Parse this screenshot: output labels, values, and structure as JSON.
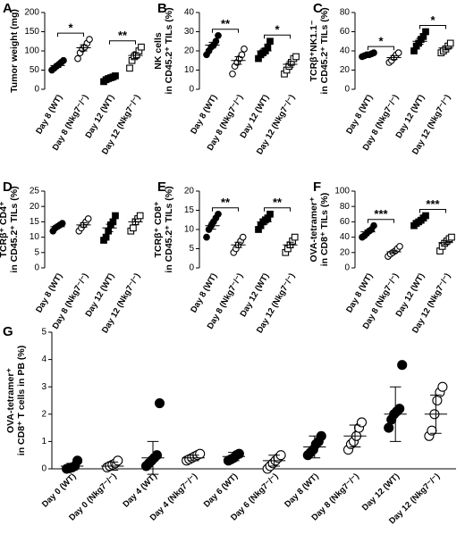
{
  "chart_data": [
    {
      "type": "dot",
      "panel": "A",
      "ylabel": [
        "Tumor weight (mg)"
      ],
      "categories": [
        "Day 8 (WT)",
        "Day 8 (Nkg7⁻/⁻)",
        "Day 12 (WT)",
        "Day 12 (Nkg7⁻/⁻)"
      ],
      "markers": [
        "filled-circle",
        "open-circle",
        "filled-square",
        "open-square"
      ],
      "values": [
        [
          50,
          55,
          60,
          65,
          70,
          75
        ],
        [
          80,
          95,
          105,
          110,
          120,
          130
        ],
        [
          20,
          25,
          28,
          30,
          32,
          35
        ],
        [
          55,
          75,
          85,
          90,
          100,
          110
        ]
      ],
      "mean": [
        62,
        108,
        28,
        88
      ],
      "error": [
        5,
        8,
        3,
        8
      ],
      "ylim": [
        0,
        200
      ],
      "yticks": [
        0,
        50,
        100,
        150,
        200
      ],
      "significance": [
        {
          "groups": [
            0,
            1
          ],
          "label": "*"
        },
        {
          "groups": [
            2,
            3
          ],
          "label": "**"
        }
      ]
    },
    {
      "type": "dot",
      "panel": "B",
      "ylabel": [
        "NK cells",
        "in CD45.2⁺ TILs (%)"
      ],
      "categories": [
        "Day 8 (WT)",
        "Day 8 (Nkg7⁻/⁻)",
        "Day 12 (WT)",
        "Day 12 (Nkg7⁻/⁻)"
      ],
      "markers": [
        "filled-circle",
        "open-circle",
        "filled-square",
        "open-square"
      ],
      "values": [
        [
          18,
          20,
          22,
          23,
          25,
          28
        ],
        [
          8,
          12,
          14,
          16,
          18,
          21
        ],
        [
          16,
          18,
          19,
          20,
          22,
          25
        ],
        [
          8,
          10,
          12,
          14,
          16,
          17
        ]
      ],
      "mean": [
        23,
        15,
        20,
        13
      ],
      "error": [
        1.5,
        2,
        1.3,
        1.5
      ],
      "ylim": [
        0,
        40
      ],
      "yticks": [
        0,
        10,
        20,
        30,
        40
      ],
      "significance": [
        {
          "groups": [
            0,
            1
          ],
          "label": "**"
        },
        {
          "groups": [
            2,
            3
          ],
          "label": "*"
        }
      ]
    },
    {
      "type": "dot",
      "panel": "C",
      "ylabel": [
        "TCRβ⁺NK1.1⁻",
        "in CD45.2⁺ TILs (%)"
      ],
      "categories": [
        "Day 8 (WT)",
        "Day 8 (Nkg7⁻/⁻)",
        "Day 12 (WT)",
        "Day 12 (Nkg7⁻/⁻)"
      ],
      "markers": [
        "filled-circle",
        "open-circle",
        "filled-square",
        "open-square"
      ],
      "values": [
        [
          34,
          35,
          36,
          36,
          37,
          38
        ],
        [
          28,
          30,
          33,
          36,
          38
        ],
        [
          40,
          45,
          48,
          52,
          55,
          60
        ],
        [
          38,
          40,
          42,
          45,
          48
        ]
      ],
      "mean": [
        36,
        33,
        50,
        43
      ],
      "error": [
        0.6,
        2,
        3,
        2
      ],
      "ylim": [
        0,
        80
      ],
      "yticks": [
        0,
        20,
        40,
        60,
        80
      ],
      "significance": [
        {
          "groups": [
            0,
            1
          ],
          "label": "*"
        },
        {
          "groups": [
            2,
            3
          ],
          "label": "*"
        }
      ]
    },
    {
      "type": "dot",
      "panel": "D",
      "ylabel": [
        "TCRβ⁺ CD4⁺",
        "in CD45.2⁺ TILs (%)"
      ],
      "categories": [
        "Day 8 (WT)",
        "Day 8 (Nkg7⁻/⁻)",
        "Day 12 (WT)",
        "Day 12 (Nkg7⁻/⁻)"
      ],
      "markers": [
        "filled-circle",
        "open-circle",
        "filled-square",
        "open-square"
      ],
      "values": [
        [
          12,
          13,
          13.5,
          14,
          14.5
        ],
        [
          12,
          13,
          14,
          15,
          16
        ],
        [
          9,
          10,
          12,
          14,
          15,
          17
        ],
        [
          12,
          13,
          15,
          16,
          17
        ]
      ],
      "mean": [
        13.4,
        14,
        13,
        15
      ],
      "error": [
        0.4,
        0.7,
        1.2,
        0.9
      ],
      "ylim": [
        0,
        25
      ],
      "yticks": [
        0,
        5,
        10,
        15,
        20,
        25
      ],
      "significance": []
    },
    {
      "type": "dot",
      "panel": "E",
      "ylabel": [
        "TCRβ⁺ CD8⁺",
        "in CD45.2⁺ TILs (%)"
      ],
      "categories": [
        "Day 8 (WT)",
        "Day 8 (Nkg7⁻/⁻)",
        "Day 12 (WT)",
        "Day 12 (Nkg7⁻/⁻)"
      ],
      "markers": [
        "filled-circle",
        "open-circle",
        "filled-square",
        "open-square"
      ],
      "values": [
        [
          8,
          10,
          11,
          12,
          13,
          14
        ],
        [
          4,
          5,
          6,
          7,
          8
        ],
        [
          10,
          11,
          12,
          12.5,
          13,
          14
        ],
        [
          4,
          5,
          6,
          7,
          8
        ]
      ],
      "mean": [
        11,
        6,
        12,
        6
      ],
      "error": [
        0.9,
        0.7,
        0.6,
        0.7
      ],
      "ylim": [
        0,
        20
      ],
      "yticks": [
        0,
        5,
        10,
        15,
        20
      ],
      "significance": [
        {
          "groups": [
            0,
            1
          ],
          "label": "**"
        },
        {
          "groups": [
            2,
            3
          ],
          "label": "**"
        }
      ]
    },
    {
      "type": "dot",
      "panel": "F",
      "ylabel": [
        "OVA-tetramer⁺",
        "in CD8⁺ TILs (%)"
      ],
      "categories": [
        "Day 8 (WT)",
        "Day 8 (Nkg7⁻/⁻)",
        "Day 12 (WT)",
        "Day 12 (Nkg7⁻/⁻)"
      ],
      "markers": [
        "filled-circle",
        "open-circle",
        "filled-square",
        "open-square"
      ],
      "values": [
        [
          40,
          42,
          45,
          48,
          50,
          55
        ],
        [
          15,
          18,
          20,
          22,
          25,
          28
        ],
        [
          55,
          58,
          60,
          62,
          65,
          68
        ],
        [
          22,
          28,
          32,
          35,
          38,
          40
        ]
      ],
      "mean": [
        47,
        21,
        61,
        33
      ],
      "error": [
        2.3,
        2,
        2,
        2.8
      ],
      "ylim": [
        0,
        100
      ],
      "yticks": [
        0,
        20,
        40,
        60,
        80,
        100
      ],
      "significance": [
        {
          "groups": [
            0,
            1
          ],
          "label": "***"
        },
        {
          "groups": [
            2,
            3
          ],
          "label": "***"
        }
      ]
    },
    {
      "type": "dot",
      "panel": "G",
      "ylabel": [
        "OVA-tetramer⁺",
        "in CD8⁺ T cells in PB (%)"
      ],
      "categories": [
        "Day 0 (WT)",
        "Day 0 (Nkg7⁻/⁻)",
        "Day 4 (WT)",
        "Day 4 (Nkg7⁻/⁻)",
        "Day 6 (WT)",
        "Day 6 (Nkg7⁻/⁻)",
        "Day 8 (WT)",
        "Day 8 (Nkg7⁻/⁻)",
        "Day 12 (WT)",
        "Day 12 (Nkg7⁻/⁻)"
      ],
      "markers": [
        "filled-circle",
        "open-circle",
        "filled-circle",
        "open-circle",
        "filled-circle",
        "open-circle",
        "filled-circle",
        "open-circle",
        "filled-circle",
        "open-circle"
      ],
      "values": [
        [
          0,
          0.02,
          0.05,
          0.1,
          0.3
        ],
        [
          0.05,
          0.1,
          0.15,
          0.2,
          0.3
        ],
        [
          0.1,
          0.2,
          0.3,
          0.4,
          0.5,
          2.4
        ],
        [
          0.3,
          0.35,
          0.4,
          0.45,
          0.5,
          0.55
        ],
        [
          0.3,
          0.35,
          0.4,
          0.5,
          0.55
        ],
        [
          0,
          0.1,
          0.2,
          0.3,
          0.4,
          0.5
        ],
        [
          0.5,
          0.6,
          0.7,
          0.9,
          1.0,
          1.2
        ],
        [
          0.7,
          0.9,
          1.0,
          1.2,
          1.5,
          1.7
        ],
        [
          1.5,
          1.8,
          2.0,
          2.1,
          2.2,
          3.8
        ],
        [
          1.2,
          1.4,
          2.0,
          2.5,
          2.8,
          3.0
        ]
      ],
      "mean": [
        0.1,
        0.1,
        0.4,
        0.4,
        0.45,
        0.3,
        0.8,
        1.2,
        2.0,
        2.0
      ],
      "error": [
        0.1,
        0.15,
        0.6,
        0.1,
        0.15,
        0.2,
        0.4,
        0.4,
        1.0,
        0.7
      ],
      "ylim": [
        0,
        5
      ],
      "yticks": [
        0,
        1,
        2,
        3,
        4,
        5
      ],
      "x_axis_line": true,
      "significance": []
    }
  ]
}
